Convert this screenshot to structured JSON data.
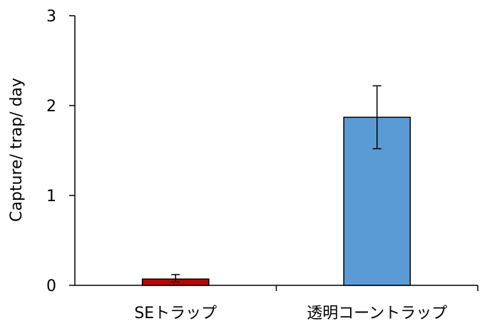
{
  "chart_data": {
    "type": "bar",
    "title": "",
    "xlabel": "",
    "ylabel": "Capture/ trap/ day",
    "ylim": [
      0,
      3
    ],
    "yticks": [
      0,
      1,
      2,
      3
    ],
    "categories": [
      "SEトラップ",
      "透明コーントラップ"
    ],
    "values": [
      0.07,
      1.87
    ],
    "error_low": [
      0.04,
      1.52
    ],
    "error_high": [
      0.12,
      2.22
    ],
    "bar_colors": [
      "#C00000",
      "#5B9BD5"
    ],
    "grid": false,
    "legend": "none"
  }
}
